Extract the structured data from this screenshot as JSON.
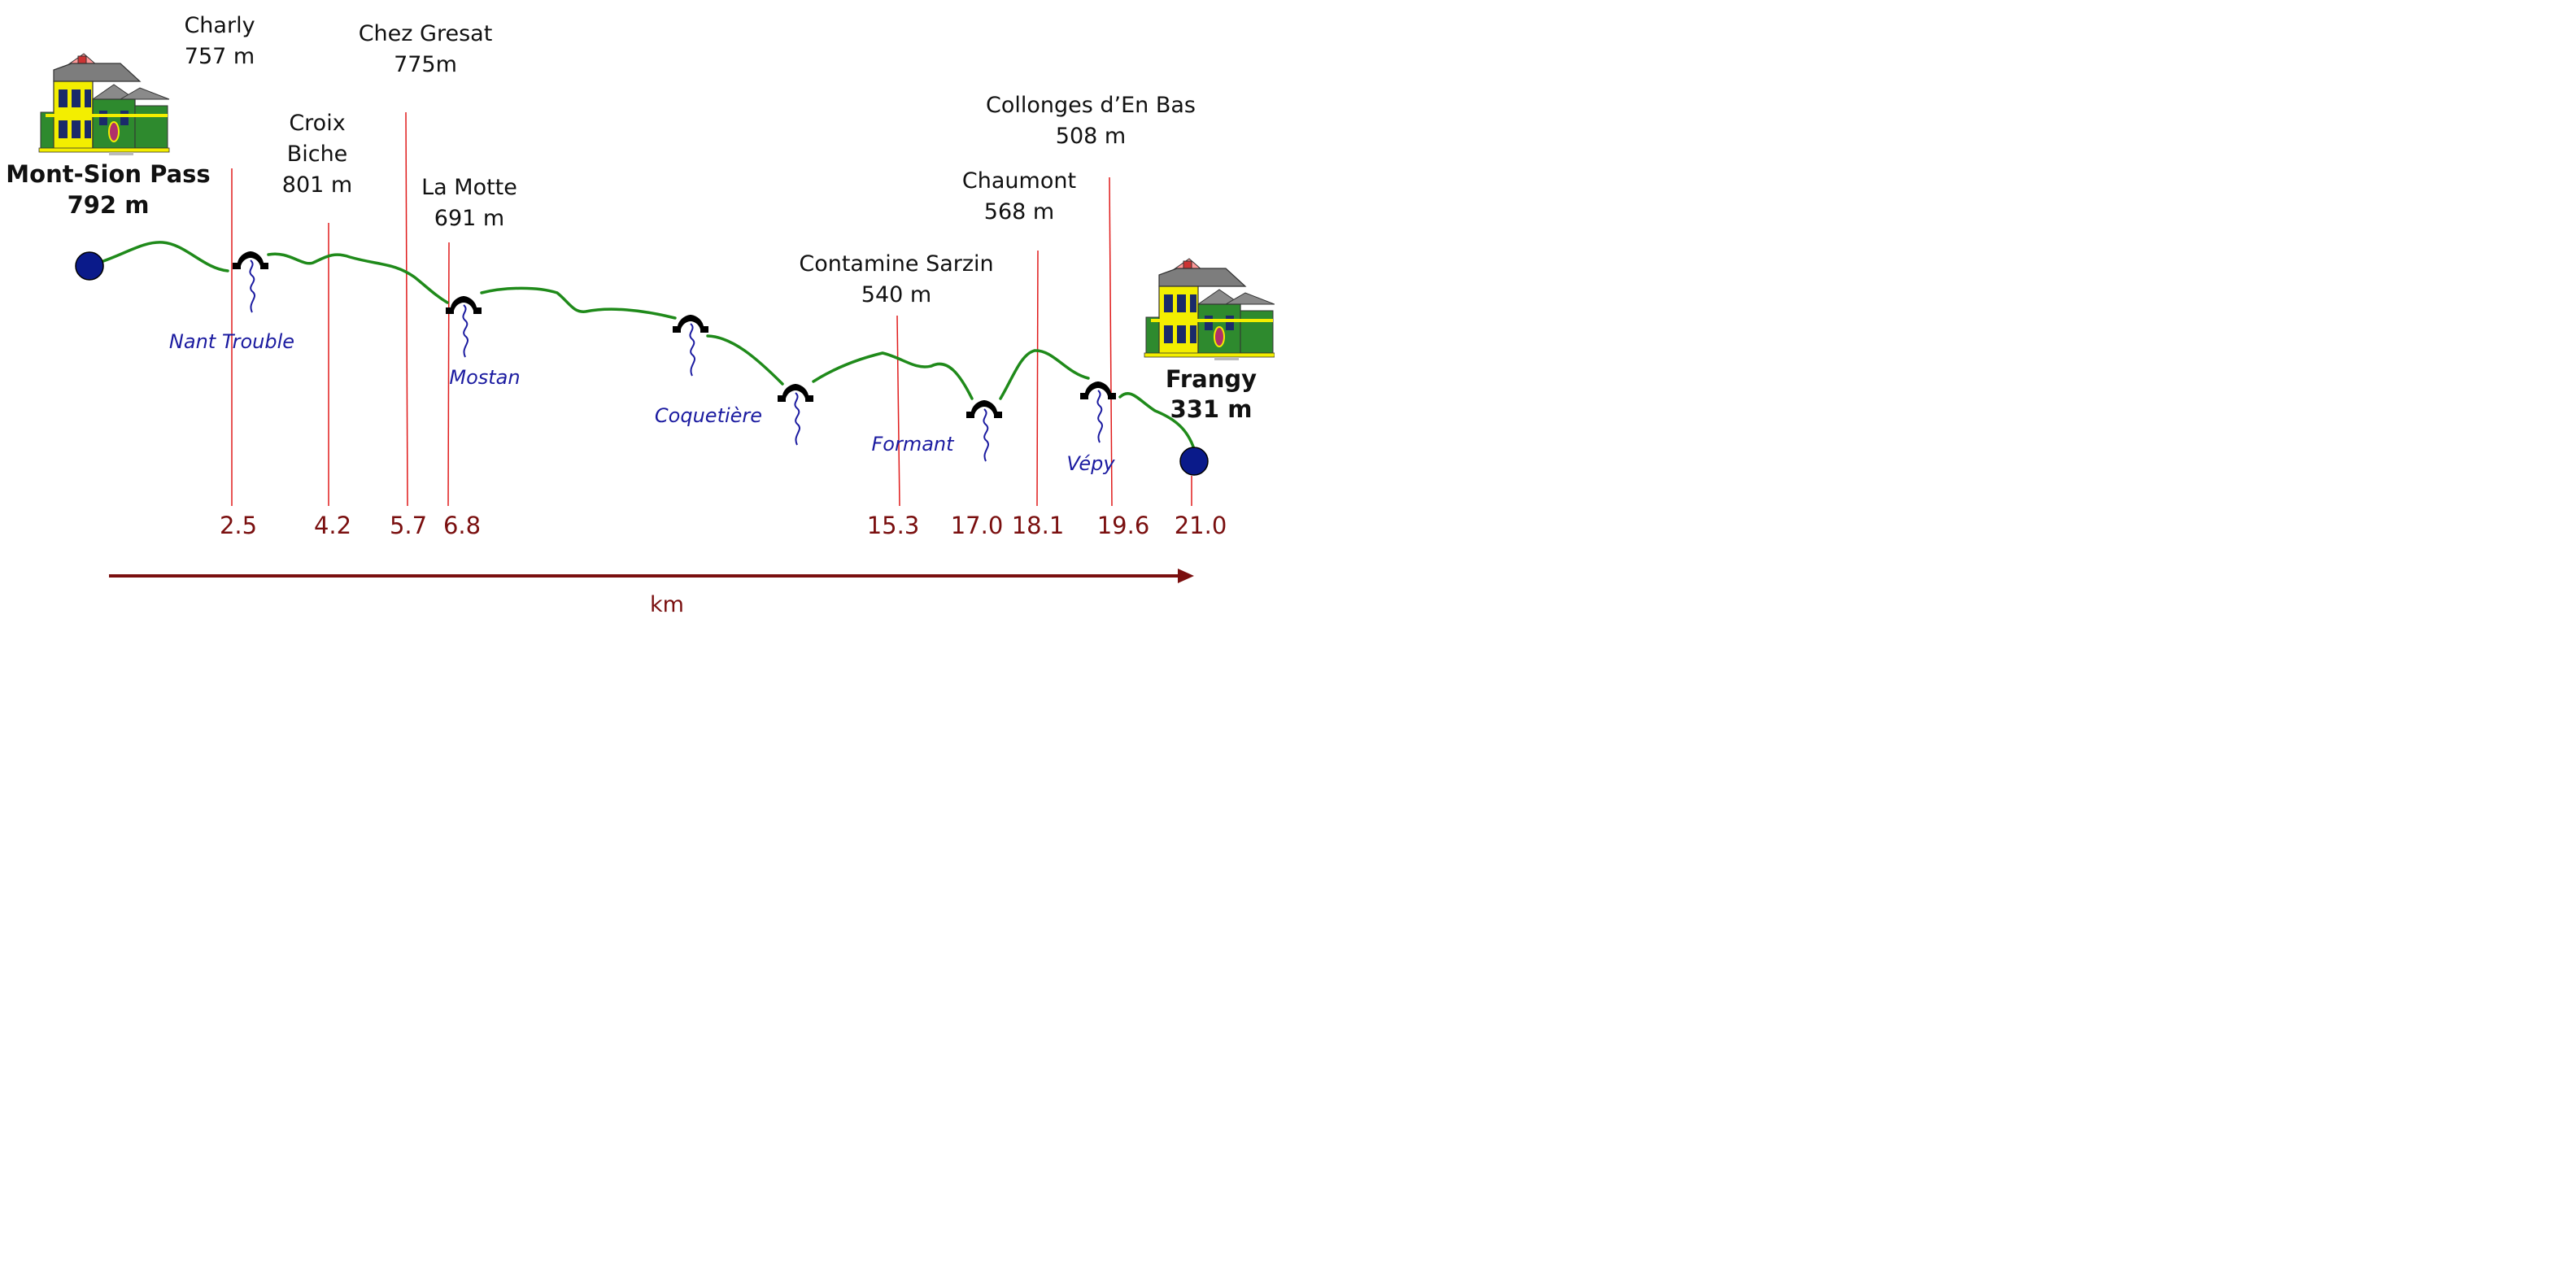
{
  "colors": {
    "profile": "#1f8a1a",
    "marker": "#e01b1b",
    "km_text": "#7a0f0f",
    "axis": "#7a0f0f",
    "river": "#1b1ba0",
    "endpoint": "#0a1a8a",
    "bridge": "#000000",
    "place_text": "#111111"
  },
  "start": {
    "name": "Mont-Sion Pass",
    "elevation": "792 m",
    "icon": "house-icon"
  },
  "end": {
    "name": "Frangy",
    "elevation": "331 m",
    "icon": "house-icon"
  },
  "waypoints": [
    {
      "name_lines": [
        "Charly"
      ],
      "elevation": "757 m",
      "km": "2.5"
    },
    {
      "name_lines": [
        "Croix",
        "Biche"
      ],
      "elevation": "801 m",
      "km": "4.2"
    },
    {
      "name_lines": [
        "Chez Gresat"
      ],
      "elevation": "775m",
      "km": "5.7"
    },
    {
      "name_lines": [
        "La Motte"
      ],
      "elevation": "691 m",
      "km": "6.8"
    },
    {
      "name_lines": [
        "Contamine Sarzin"
      ],
      "elevation": "540 m",
      "km": "15.3"
    },
    {
      "name_lines": [
        "Chaumont"
      ],
      "elevation": "568 m",
      "km": "18.1"
    },
    {
      "name_lines": [
        "Collonges d’En Bas"
      ],
      "elevation": "508 m",
      "km": "19.6"
    }
  ],
  "extra_km_labels": [
    "17.0",
    "21.0"
  ],
  "rivers": [
    "Nant Trouble",
    "Mostan",
    "Coquetière",
    "Formant",
    "Vépy"
  ],
  "axis": {
    "label": "km"
  }
}
